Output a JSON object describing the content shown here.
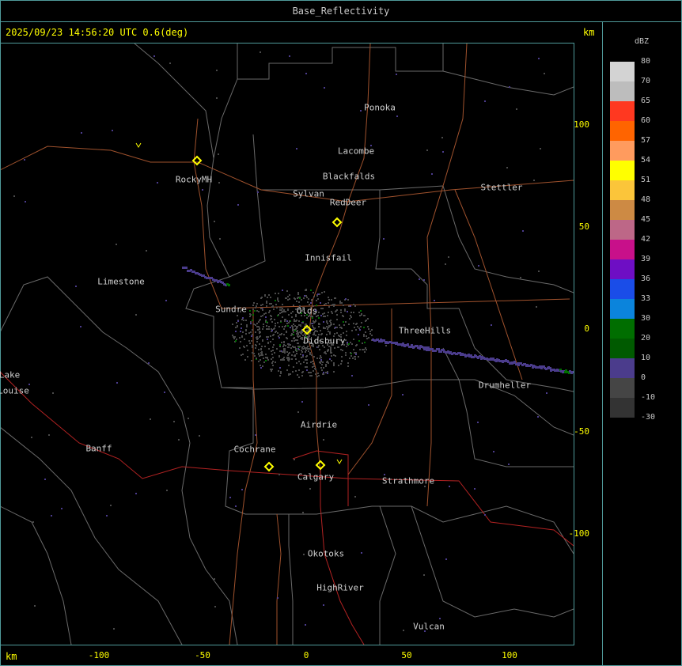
{
  "window": {
    "title": "Base_Reflectivity"
  },
  "header": {
    "timestamp": "2025/09/23 14:56:20 UTC 0.6(deg)",
    "unit_right": "km",
    "unit_bottom": "km"
  },
  "axes": {
    "x_ticks": [
      "-100",
      "-50",
      "0",
      "50",
      "100"
    ],
    "y_ticks": [
      "100",
      "50",
      "0",
      "-50",
      "-100"
    ]
  },
  "legend": {
    "unit": "dBZ",
    "bins": [
      {
        "label": "80",
        "color": "#d3d3d3"
      },
      {
        "label": "70",
        "color": "#bdbdbd"
      },
      {
        "label": "65",
        "color": "#ff3820"
      },
      {
        "label": "60",
        "color": "#ff6400"
      },
      {
        "label": "57",
        "color": "#ff9b5e"
      },
      {
        "label": "54",
        "color": "#ffff00"
      },
      {
        "label": "51",
        "color": "#fbc53a"
      },
      {
        "label": "48",
        "color": "#cd8a44"
      },
      {
        "label": "45",
        "color": "#bd6787"
      },
      {
        "label": "42",
        "color": "#c8108a"
      },
      {
        "label": "39",
        "color": "#6e0ec4"
      },
      {
        "label": "36",
        "color": "#1a4de8"
      },
      {
        "label": "33",
        "color": "#0b84dc"
      },
      {
        "label": "30",
        "color": "#006e00"
      },
      {
        "label": "20",
        "color": "#005a00"
      },
      {
        "label": "10",
        "color": "#4b3c8c"
      },
      {
        "label": "0",
        "color": "#454545"
      },
      {
        "label": "-10",
        "color": "#333333"
      },
      {
        "label": "-30",
        "color": ""
      }
    ]
  },
  "map": {
    "towns": [
      "Ponoka",
      "Lacombe",
      "Blackfalds",
      "Sylvan",
      "RedDeer",
      "Stettler",
      "RockyMH",
      "Innisfail",
      "Limestone",
      "Sundre",
      "Olds",
      "ThreeHills",
      "Didsbury",
      "Drumheller",
      "Lake",
      "Louise",
      "Airdrie",
      "Banff",
      "Cochrane",
      "Calgary",
      "Strathmore",
      "Okotoks",
      "HighRiver",
      "Vulcan"
    ],
    "colors": {
      "boundary": "#6a6a6a",
      "highway": "#a0522d",
      "major_highway": "#b22222",
      "radar_site": "#ffff00",
      "clutter": "#4a4a4a",
      "light_echo": "#4b3c8c"
    }
  }
}
